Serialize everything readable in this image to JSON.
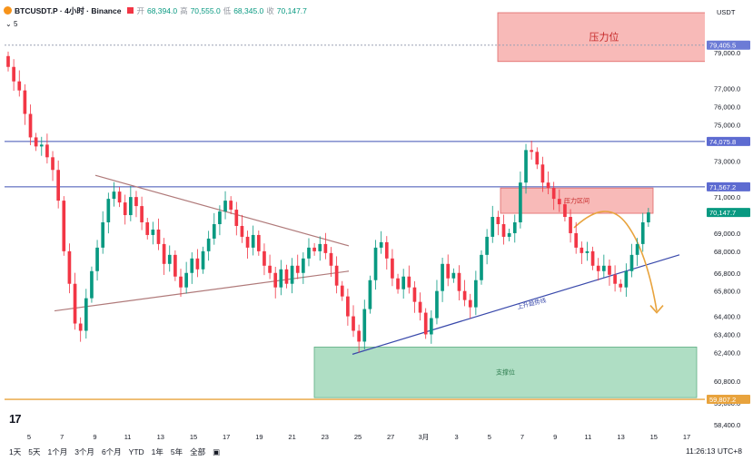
{
  "header": {
    "symbol": "BTCUSDT.P · 4小时 · Binance",
    "open_label": "开",
    "open": "68,394.0",
    "high_label": "高",
    "high": "70,555.0",
    "low_label": "低",
    "low": "68,345.0",
    "close_label": "收",
    "close": "70,147.7",
    "sub_label": "5"
  },
  "currency_label": "USDT",
  "timeframes": [
    "1天",
    "5天",
    "1个月",
    "3个月",
    "6个月",
    "YTD",
    "1年",
    "5年",
    "全部"
  ],
  "clock": "11:26:13 UTC+8",
  "colors": {
    "up": "#089981",
    "down": "#f23645",
    "resistance_box": "#f5a3a0",
    "support_box": "#94d3b0",
    "orange": "#e8a33d",
    "blue_line": "#3f51b5",
    "trend": "#b07a7a",
    "price_label": "#5d6bd1"
  },
  "chart_data": {
    "type": "candlestick",
    "timeframe": "4h",
    "ylim": [
      57900,
      81200
    ],
    "y_ticks": [
      58400,
      59600,
      60800,
      62400,
      63400,
      64400,
      65800,
      66800,
      68000,
      69000,
      71000,
      73000,
      75000,
      76000,
      77000,
      79000
    ],
    "x_ticks": [
      "5",
      "7",
      "9",
      "11",
      "13",
      "15",
      "17",
      "19",
      "21",
      "23",
      "25",
      "27",
      "3月",
      "3",
      "5",
      "7",
      "9",
      "11",
      "13",
      "15",
      "17"
    ],
    "horizontal_levels": [
      {
        "price": 79405.5,
        "label": "79,405.5",
        "style": "dotted"
      },
      {
        "price": 74075.8,
        "label": "74,075.8",
        "style": "solid"
      },
      {
        "price": 71567.2,
        "label": "71,567.2",
        "style": "solid"
      },
      {
        "price": 59807.2,
        "label": "59,807.2",
        "style": "solid-orange"
      }
    ],
    "last_price": {
      "price": 70147.7,
      "label": "70,147.7"
    },
    "zones": [
      {
        "name": "压力位",
        "from": 78500,
        "to": 81200,
        "x_start": "Mar 5 + 3d",
        "x_end": "Mar 17"
      },
      {
        "name": "压力区间",
        "from": 70100,
        "to": 71500,
        "x_start": "Mar 5",
        "x_end": "Mar 16"
      },
      {
        "name": "支撑位",
        "from": 59900,
        "to": 62700,
        "x_start": "Feb 23",
        "x_end": "Mar 17"
      }
    ],
    "trendline_label": "上升趋势线",
    "closes": [
      78200,
      77400,
      76900,
      75600,
      74300,
      73800,
      73900,
      73200,
      72500,
      70800,
      68000,
      66200,
      64000,
      63600,
      65400,
      66900,
      68200,
      69600,
      70900,
      71300,
      70700,
      70000,
      71000,
      70500,
      69600,
      68900,
      69200,
      68400,
      67300,
      67800,
      66600,
      66000,
      66800,
      67600,
      67000,
      68000,
      68700,
      69500,
      70200,
      70800,
      70300,
      69400,
      68800,
      68200,
      68900,
      68000,
      67200,
      66800,
      66000,
      67000,
      66200,
      67200,
      66800,
      67600,
      68200,
      68000,
      68400,
      67900,
      67200,
      66100,
      65500,
      64400,
      63600,
      63000,
      64800,
      66400,
      68200,
      68500,
      67600,
      66500,
      65900,
      66600,
      66000,
      65200,
      64600,
      63400,
      64300,
      65800,
      67300,
      66500,
      66800,
      65800,
      65300,
      64900,
      66400,
      67800,
      68800,
      69900,
      69500,
      68800,
      69000,
      69600,
      71800,
      73600,
      73500,
      72800,
      71800,
      71500,
      70900,
      70600,
      69900,
      69000,
      68200,
      67900,
      68000,
      67200,
      66900,
      67200,
      66700,
      66200,
      66000,
      66900,
      67800,
      68400,
      69600,
      70147.7
    ]
  }
}
